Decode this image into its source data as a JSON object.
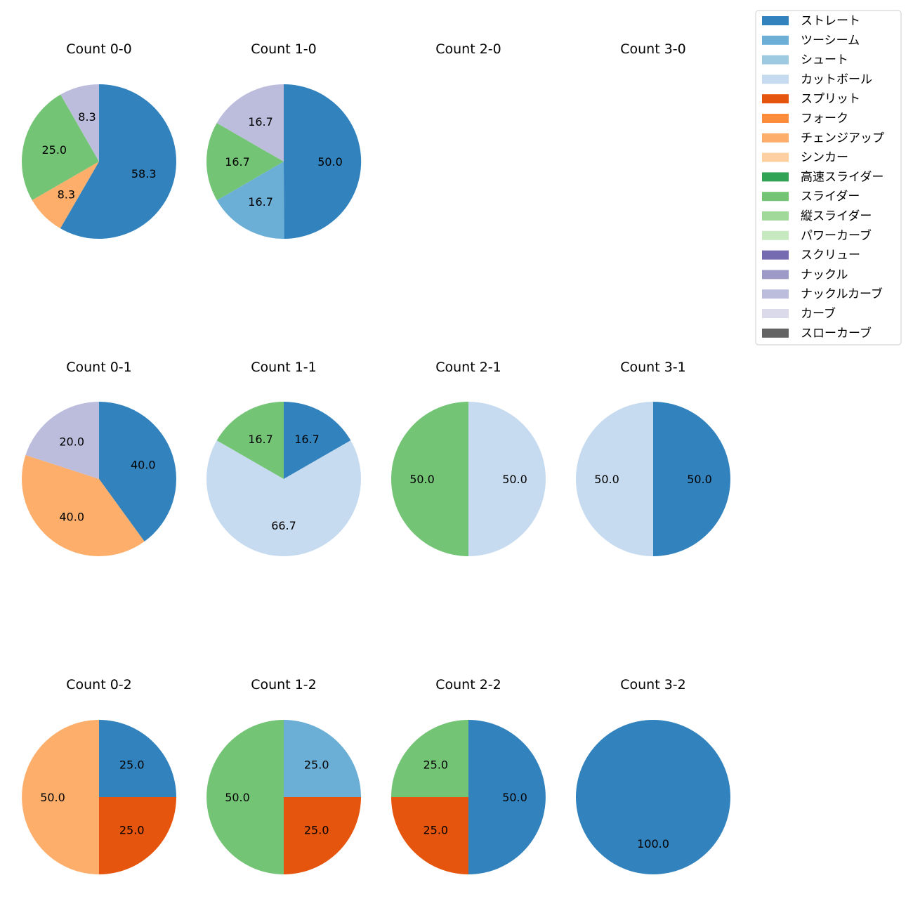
{
  "chart_data": {
    "type": "pie",
    "legend": {
      "placement": "top-right",
      "entries": [
        {
          "label": "ストレート",
          "color": "#3182bd"
        },
        {
          "label": "ツーシーム",
          "color": "#6baed6"
        },
        {
          "label": "シュート",
          "color": "#9ecae1"
        },
        {
          "label": "カットボール",
          "color": "#c6dbef"
        },
        {
          "label": "スプリット",
          "color": "#e6550d"
        },
        {
          "label": "フォーク",
          "color": "#fd8d3c"
        },
        {
          "label": "チェンジアップ",
          "color": "#fdae6b"
        },
        {
          "label": "シンカー",
          "color": "#fdd0a2"
        },
        {
          "label": "高速スライダー",
          "color": "#31a354"
        },
        {
          "label": "スライダー",
          "color": "#74c476"
        },
        {
          "label": "縦スライダー",
          "color": "#a1d99b"
        },
        {
          "label": "パワーカーブ",
          "color": "#c7e9c0"
        },
        {
          "label": "スクリュー",
          "color": "#756bb1"
        },
        {
          "label": "ナックル",
          "color": "#9e9ac8"
        },
        {
          "label": "ナックルカーブ",
          "color": "#bcbddc"
        },
        {
          "label": "カーブ",
          "color": "#dadaeb"
        },
        {
          "label": "スローカーブ",
          "color": "#636363"
        }
      ]
    },
    "pies": [
      {
        "title": "Count 0-0",
        "slices": [
          {
            "pitch": "ストレート",
            "value": 58.3,
            "label": "58.3"
          },
          {
            "pitch": "チェンジアップ",
            "value": 8.3,
            "label": "8.3"
          },
          {
            "pitch": "スライダー",
            "value": 25.0,
            "label": "25.0"
          },
          {
            "pitch": "ナックルカーブ",
            "value": 8.3,
            "label": "8.3"
          }
        ]
      },
      {
        "title": "Count 1-0",
        "slices": [
          {
            "pitch": "ストレート",
            "value": 50.0,
            "label": "50.0"
          },
          {
            "pitch": "ツーシーム",
            "value": 16.7,
            "label": "16.7"
          },
          {
            "pitch": "スライダー",
            "value": 16.7,
            "label": "16.7"
          },
          {
            "pitch": "ナックルカーブ",
            "value": 16.7,
            "label": "16.7"
          }
        ]
      },
      {
        "title": "Count 2-0",
        "slices": []
      },
      {
        "title": "Count 3-0",
        "slices": []
      },
      {
        "title": "Count 0-1",
        "slices": [
          {
            "pitch": "ストレート",
            "value": 40.0,
            "label": "40.0"
          },
          {
            "pitch": "チェンジアップ",
            "value": 40.0,
            "label": "40.0"
          },
          {
            "pitch": "ナックルカーブ",
            "value": 20.0,
            "label": "20.0"
          }
        ]
      },
      {
        "title": "Count 1-1",
        "slices": [
          {
            "pitch": "ストレート",
            "value": 16.7,
            "label": "16.7"
          },
          {
            "pitch": "カットボール",
            "value": 66.7,
            "label": "66.7"
          },
          {
            "pitch": "スライダー",
            "value": 16.7,
            "label": "16.7"
          }
        ]
      },
      {
        "title": "Count 2-1",
        "slices": [
          {
            "pitch": "カットボール",
            "value": 50.0,
            "label": "50.0"
          },
          {
            "pitch": "スライダー",
            "value": 50.0,
            "label": "50.0"
          }
        ]
      },
      {
        "title": "Count 3-1",
        "slices": [
          {
            "pitch": "ストレート",
            "value": 50.0,
            "label": "50.0"
          },
          {
            "pitch": "カットボール",
            "value": 50.0,
            "label": "50.0"
          }
        ]
      },
      {
        "title": "Count 0-2",
        "slices": [
          {
            "pitch": "ストレート",
            "value": 25.0,
            "label": "25.0"
          },
          {
            "pitch": "スプリット",
            "value": 25.0,
            "label": "25.0"
          },
          {
            "pitch": "チェンジアップ",
            "value": 50.0,
            "label": "50.0"
          }
        ]
      },
      {
        "title": "Count 1-2",
        "slices": [
          {
            "pitch": "ツーシーム",
            "value": 25.0,
            "label": "25.0"
          },
          {
            "pitch": "スプリット",
            "value": 25.0,
            "label": "25.0"
          },
          {
            "pitch": "スライダー",
            "value": 50.0,
            "label": "50.0"
          }
        ]
      },
      {
        "title": "Count 2-2",
        "slices": [
          {
            "pitch": "ストレート",
            "value": 50.0,
            "label": "50.0"
          },
          {
            "pitch": "スプリット",
            "value": 25.0,
            "label": "25.0"
          },
          {
            "pitch": "スライダー",
            "value": 25.0,
            "label": "25.0"
          }
        ]
      },
      {
        "title": "Count 3-2",
        "slices": [
          {
            "pitch": "ストレート",
            "value": 100.0,
            "label": "100.0"
          }
        ]
      }
    ]
  }
}
